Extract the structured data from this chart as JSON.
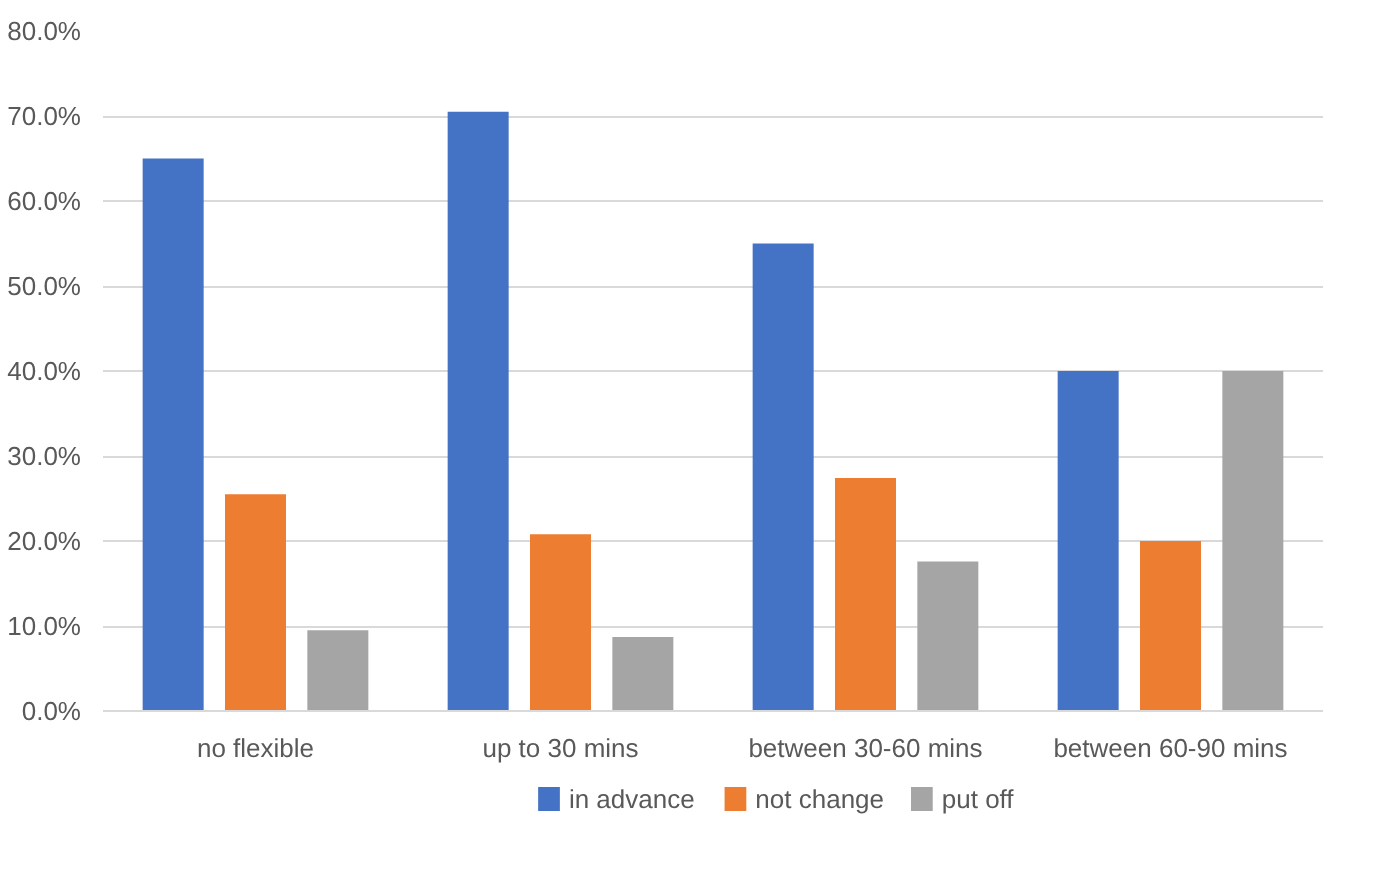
{
  "chart_data": {
    "type": "bar",
    "categories": [
      "no flexible",
      "up to 30 mins",
      "between 30-60 mins",
      "between 60-90 mins"
    ],
    "series": [
      {
        "name": "in advance",
        "color": "#4472c4",
        "values": [
          65.0,
          70.5,
          55.0,
          40.0
        ]
      },
      {
        "name": "not change",
        "color": "#ed7d31",
        "values": [
          25.5,
          20.8,
          27.4,
          20.0
        ]
      },
      {
        "name": "put off",
        "color": "#a5a5a5",
        "values": [
          9.5,
          8.7,
          17.6,
          40.0
        ]
      }
    ],
    "ylim": [
      0,
      80
    ],
    "yticks": [
      {
        "value": 0,
        "label": "0.0%"
      },
      {
        "value": 10,
        "label": "10.0%"
      },
      {
        "value": 20,
        "label": "20.0%"
      },
      {
        "value": 30,
        "label": "30.0%"
      },
      {
        "value": 40,
        "label": "40.0%"
      },
      {
        "value": 50,
        "label": "50.0%"
      },
      {
        "value": 60,
        "label": "60.0%"
      },
      {
        "value": 70,
        "label": "70.0%"
      },
      {
        "value": 80,
        "label": "80.0%"
      }
    ],
    "grid": "y",
    "legend": "bottom"
  }
}
